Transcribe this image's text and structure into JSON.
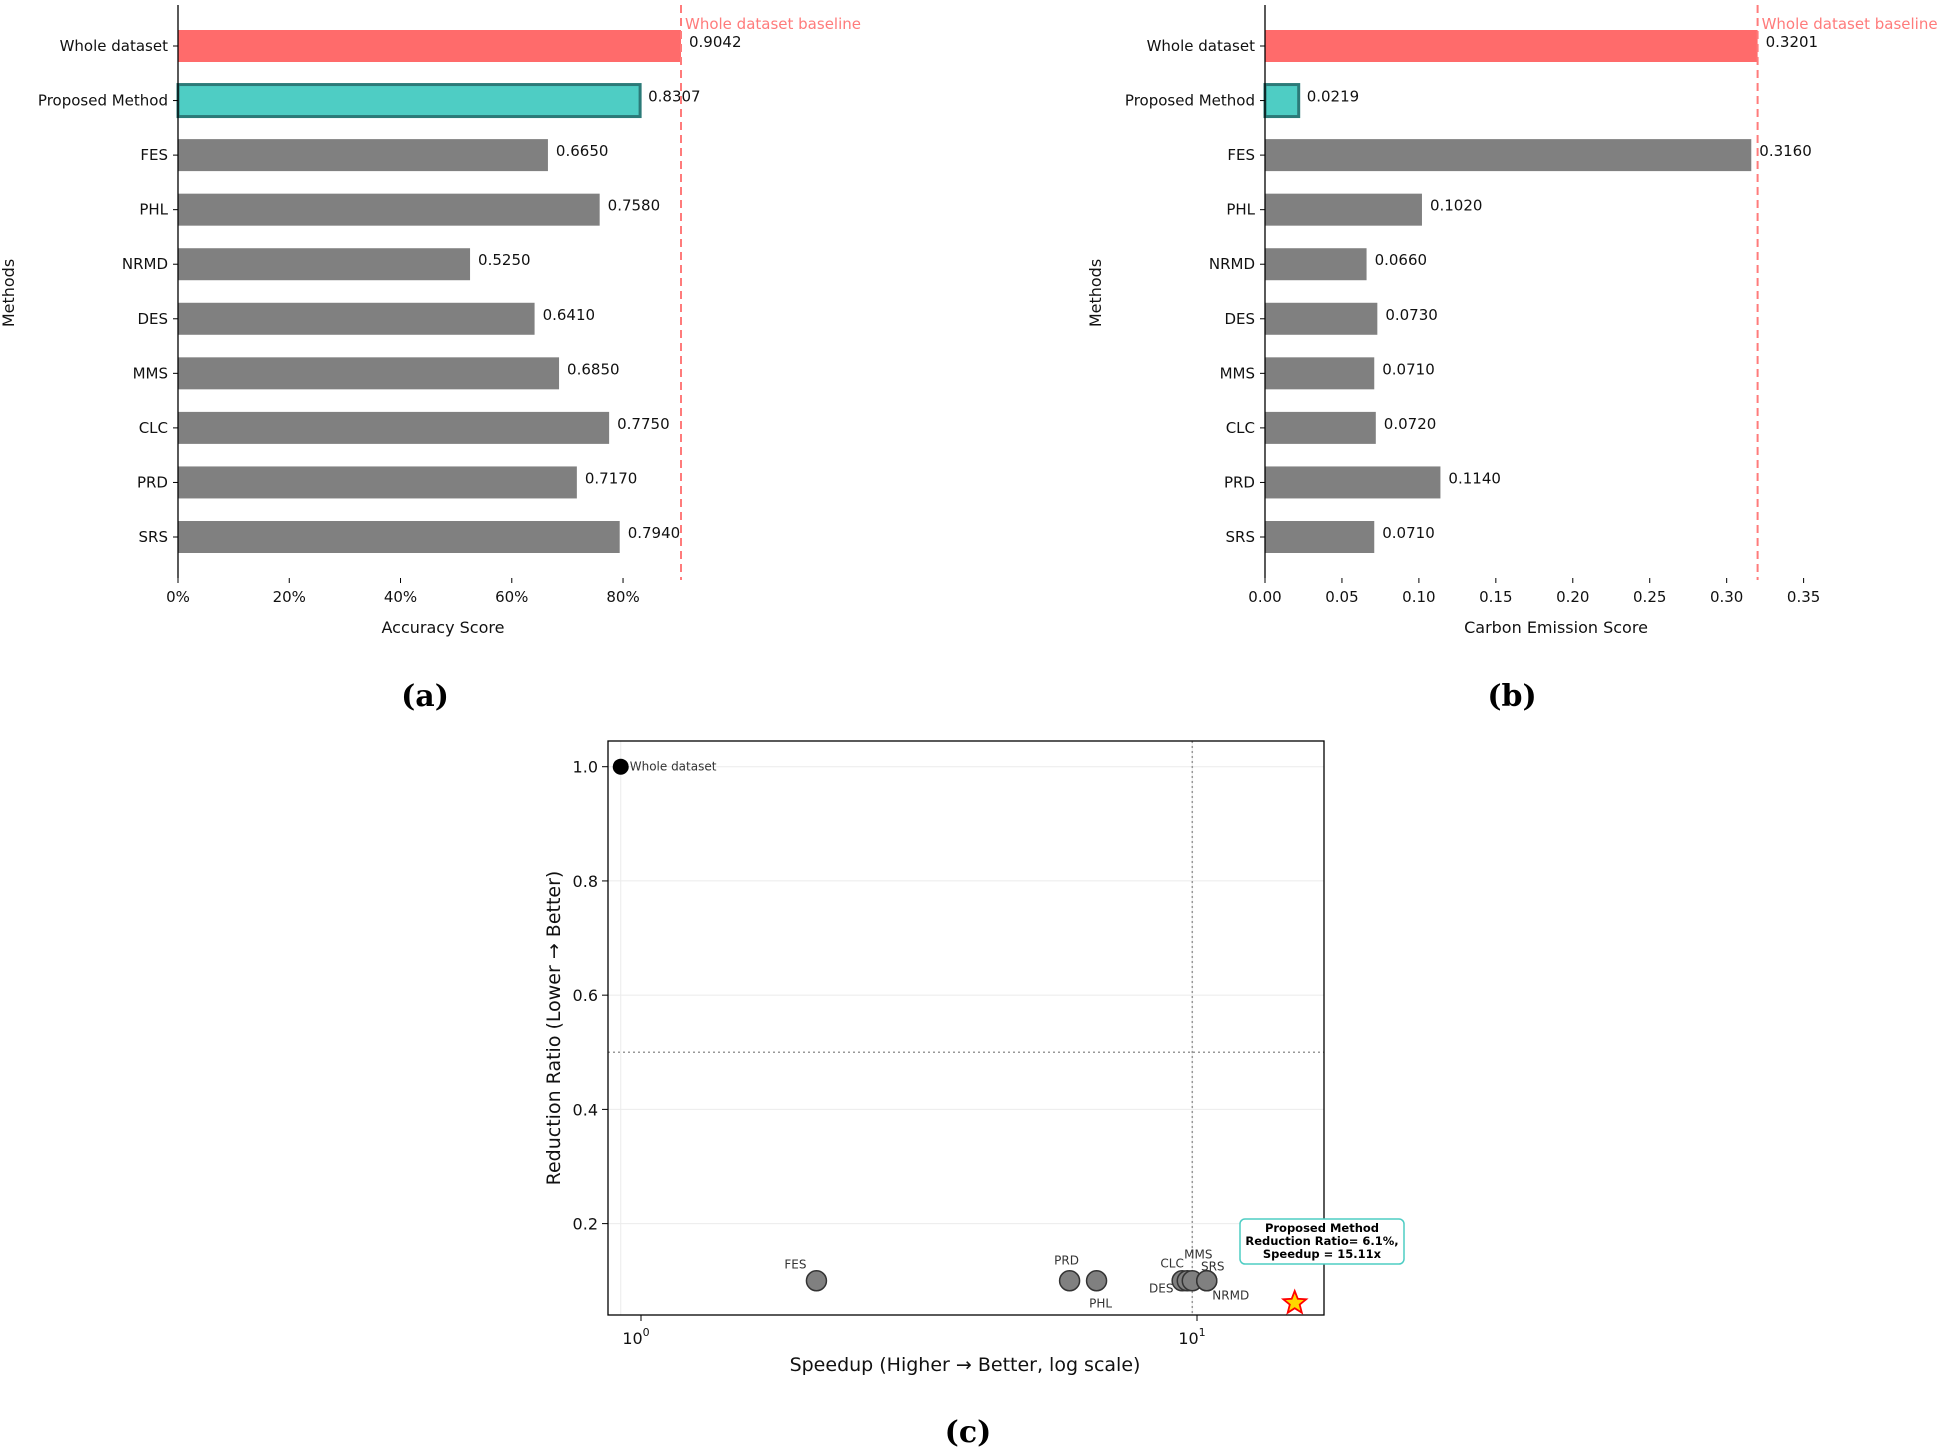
{
  "charts": {
    "a": {
      "caption": "(a)",
      "xlabel": "Accuracy Score",
      "ylabel": "Methods",
      "xticks": [
        "0%",
        "20%",
        "40%",
        "60%",
        "80%"
      ],
      "baseline_label": "Whole dataset baseline"
    },
    "b": {
      "caption": "(b)",
      "xlabel": "Carbon Emission Score",
      "ylabel": "Methods",
      "xticks": [
        "0.00",
        "0.05",
        "0.10",
        "0.15",
        "0.20",
        "0.25",
        "0.30",
        "0.35"
      ],
      "baseline_label": "Whole dataset baseline"
    },
    "c": {
      "caption": "(c)",
      "xlabel": "Speedup (Higher → Better, log scale)",
      "ylabel": "Reduction Ratio (Lower → Better)",
      "yticks": [
        "0.2",
        "0.4",
        "0.6",
        "0.8",
        "1.0"
      ],
      "xtick_base": "10",
      "xtick_exps": [
        "0",
        "1"
      ],
      "annotation": {
        "line1": "Proposed Method",
        "line2": "Reduction Ratio= 6.1%,",
        "line3": "Speedup = 15.11x"
      }
    }
  },
  "colors": {
    "baseline_bar": "#ff6b6b",
    "proposed_bar": "#4ecdc4",
    "proposed_edge": "#2b7a78",
    "other_bar": "#808080",
    "baseline_line": "#ff7b7b",
    "star_fill": "#ffd700",
    "star_edge": "#ff0000"
  },
  "chart_data": [
    {
      "type": "bar",
      "orientation": "horizontal",
      "categories": [
        "Whole dataset",
        "Proposed Method",
        "FES",
        "PHL",
        "NRMD",
        "DES",
        "MMS",
        "CLC",
        "PRD",
        "SRS"
      ],
      "values": [
        0.9042,
        0.8307,
        0.665,
        0.758,
        0.525,
        0.641,
        0.685,
        0.775,
        0.717,
        0.794
      ],
      "value_labels": [
        "0.9042",
        "0.8307",
        "0.6650",
        "0.7580",
        "0.5250",
        "0.6410",
        "0.6850",
        "0.7750",
        "0.7170",
        "0.7940"
      ],
      "baseline": 0.9042,
      "xlim": [
        0,
        0.9042
      ],
      "xlabel": "Accuracy Score",
      "ylabel": "Methods",
      "grid": false
    },
    {
      "type": "bar",
      "orientation": "horizontal",
      "categories": [
        "Whole dataset",
        "Proposed Method",
        "FES",
        "PHL",
        "NRMD",
        "DES",
        "MMS",
        "CLC",
        "PRD",
        "SRS"
      ],
      "values": [
        0.3201,
        0.0219,
        0.316,
        0.102,
        0.066,
        0.073,
        0.071,
        0.072,
        0.114,
        0.071
      ],
      "value_labels": [
        "0.3201",
        "0.0219",
        "0.3160",
        "0.1020",
        "0.0660",
        "0.0730",
        "0.0710",
        "0.0720",
        "0.1140",
        "0.0710"
      ],
      "baseline": 0.3201,
      "xlim": [
        0,
        0.36
      ],
      "xlabel": "Carbon Emission Score",
      "ylabel": "Methods",
      "grid": false
    },
    {
      "type": "scatter",
      "x_scale": "log",
      "xlim": [
        0.95,
        17
      ],
      "ylim": [
        0.04,
        1.045
      ],
      "xlabel": "Speedup (Higher → Better, log scale)",
      "ylabel": "Reduction Ratio (Lower → Better)",
      "grid": true,
      "reference_lines": {
        "x": 10,
        "y": 0.5
      },
      "points": [
        {
          "label": "Whole dataset",
          "x": 1.0,
          "y": 1.0,
          "color": "#000000"
        },
        {
          "label": "FES",
          "x": 2.2,
          "y": 0.1,
          "color": "#808080"
        },
        {
          "label": "PRD",
          "x": 6.1,
          "y": 0.1,
          "color": "#808080"
        },
        {
          "label": "PHL",
          "x": 6.8,
          "y": 0.1,
          "color": "#808080"
        },
        {
          "label": "CLC",
          "x": 9.6,
          "y": 0.1,
          "color": "#808080"
        },
        {
          "label": "DES",
          "x": 9.8,
          "y": 0.1,
          "color": "#808080"
        },
        {
          "label": "MMS",
          "x": 10.0,
          "y": 0.1,
          "color": "#808080"
        },
        {
          "label": "SRS",
          "x": 10.6,
          "y": 0.1,
          "color": "#808080"
        },
        {
          "label": "NRMD",
          "x": 10.6,
          "y": 0.1,
          "color": "#808080"
        },
        {
          "label": "Proposed Method",
          "x": 15.11,
          "y": 0.061,
          "color": "#ffd700",
          "marker": "star"
        }
      ]
    }
  ]
}
